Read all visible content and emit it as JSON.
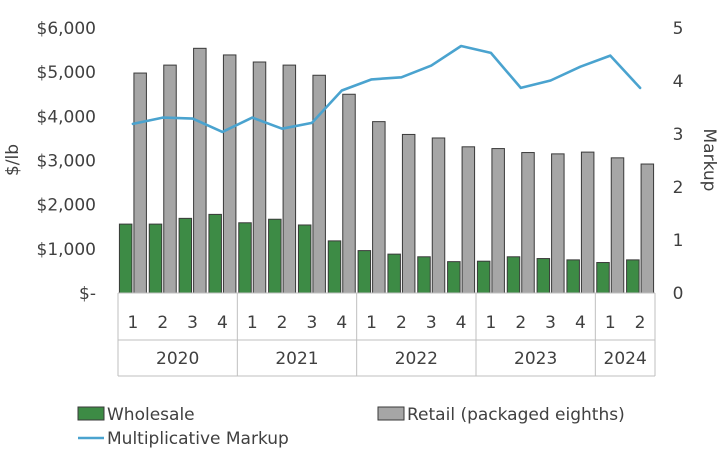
{
  "chart_data": {
    "type": "bar",
    "quarters": [
      "1",
      "2",
      "3",
      "4",
      "1",
      "2",
      "3",
      "4",
      "1",
      "2",
      "3",
      "4",
      "1",
      "2",
      "3",
      "4",
      "1",
      "2"
    ],
    "years": [
      {
        "label": "2020",
        "count": 4
      },
      {
        "label": "2021",
        "count": 4
      },
      {
        "label": "2022",
        "count": 4
      },
      {
        "label": "2023",
        "count": 4
      },
      {
        "label": "2024",
        "count": 2
      }
    ],
    "series": [
      {
        "name": "Wholesale",
        "kind": "bar",
        "axis": "left",
        "color": "#3d8b45",
        "values": [
          1560,
          1560,
          1690,
          1780,
          1590,
          1670,
          1540,
          1180,
          960,
          880,
          820,
          710,
          720,
          820,
          780,
          750,
          690,
          750
        ]
      },
      {
        "name": "Retail (packaged eighths)",
        "kind": "bar",
        "axis": "left",
        "color": "#a6a6a6",
        "values": [
          4980,
          5160,
          5540,
          5390,
          5230,
          5160,
          4930,
          4500,
          3880,
          3590,
          3510,
          3310,
          3270,
          3180,
          3150,
          3190,
          3060,
          2920
        ]
      },
      {
        "name": "Multiplicative Markup",
        "kind": "line",
        "axis": "right",
        "color": "#4aa3cf",
        "values": [
          3.19,
          3.31,
          3.29,
          3.04,
          3.31,
          3.1,
          3.21,
          3.82,
          4.03,
          4.07,
          4.29,
          4.66,
          4.53,
          3.87,
          4.01,
          4.27,
          4.48,
          3.87
        ]
      }
    ],
    "y_left": {
      "label": "$/lb",
      "min": 0,
      "max": 6000,
      "ticks": [
        0,
        1000,
        2000,
        3000,
        4000,
        5000,
        6000
      ],
      "tick_labels": [
        "$-",
        "$1,000",
        "$2,000",
        "$3,000",
        "$4,000",
        "$5,000",
        "$6,000"
      ]
    },
    "y_right": {
      "label": "Markup",
      "min": 0,
      "max": 5,
      "ticks": [
        0,
        1,
        2,
        3,
        4,
        5
      ],
      "tick_labels": [
        "0",
        "1",
        "2",
        "3",
        "4",
        "5"
      ]
    },
    "grid": false,
    "legend_position": "bottom"
  },
  "colors": {
    "axis": "#bfbfbf",
    "text": "#404040",
    "bar_outline": "#3a3a3a"
  }
}
